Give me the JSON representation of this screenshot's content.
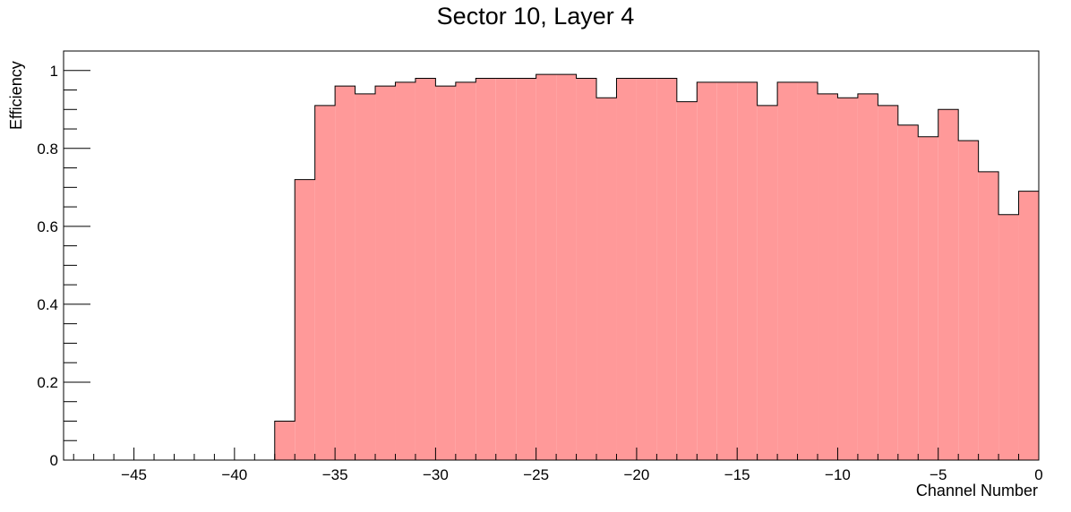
{
  "chart_data": {
    "type": "bar",
    "title": "Sector 10, Layer 4",
    "xlabel": "Channel Number",
    "ylabel": "Efficiency",
    "xlim": [
      -48.5,
      0
    ],
    "ylim": [
      0,
      1.05
    ],
    "x_major_ticks": [
      -45,
      -40,
      -35,
      -30,
      -25,
      -20,
      -15,
      -10,
      -5,
      0
    ],
    "x_tick_labels": [
      "−45",
      "−40",
      "−35",
      "−30",
      "−25",
      "−20",
      "−15",
      "−10",
      "−5",
      "0"
    ],
    "y_major_ticks": [
      0,
      0.2,
      0.4,
      0.6,
      0.8,
      1
    ],
    "y_tick_labels": [
      "0",
      "0.2",
      "0.4",
      "0.6",
      "0.8",
      "1"
    ],
    "bin_low_edges": [
      -38,
      -37,
      -36,
      -35,
      -34,
      -33,
      -32,
      -31,
      -30,
      -29,
      -28,
      -27,
      -26,
      -25,
      -24,
      -23,
      -22,
      -21,
      -20,
      -19,
      -18,
      -17,
      -16,
      -15,
      -14,
      -13,
      -12,
      -11,
      -10,
      -9,
      -8,
      -7,
      -6,
      -5,
      -4,
      -3,
      -2,
      -1
    ],
    "bin_width": 1,
    "values": [
      0.1,
      0.72,
      0.91,
      0.96,
      0.94,
      0.96,
      0.97,
      0.98,
      0.96,
      0.97,
      0.98,
      0.98,
      0.98,
      0.99,
      0.99,
      0.98,
      0.93,
      0.98,
      0.98,
      0.98,
      0.92,
      0.97,
      0.97,
      0.97,
      0.91,
      0.97,
      0.97,
      0.94,
      0.93,
      0.94,
      0.91,
      0.86,
      0.83,
      0.9,
      0.82,
      0.74,
      0.63,
      0.69
    ],
    "fill_color": "#ff9999",
    "line_color": "#000000",
    "grid": false,
    "legend": false
  }
}
